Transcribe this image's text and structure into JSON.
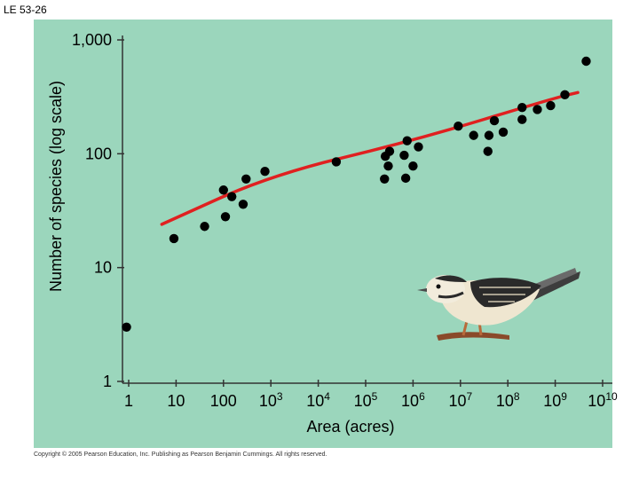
{
  "slide_id": "LE 53-26",
  "copyright": "Copyright © 2005 Pearson Education, Inc. Publishing as Pearson Benjamin Cummings. All rights reserved.",
  "colors": {
    "panel": "#9bd6bc",
    "points": "#000000",
    "trend": "#e02020"
  },
  "illustration": {
    "icon": "bird-illustration-icon"
  },
  "chart_data": {
    "type": "scatter",
    "title": "",
    "xlabel": "Area (acres)",
    "ylabel": "Number of species (log scale)",
    "x_scale": "log",
    "y_scale": "log",
    "xlim": [
      1,
      10000000000
    ],
    "ylim": [
      1,
      1000
    ],
    "x_tick_values": [
      1,
      10,
      100,
      1000,
      10000,
      100000,
      1000000,
      10000000,
      100000000,
      1000000000,
      10000000000
    ],
    "x_ticks": [
      {
        "base": "1",
        "exp": ""
      },
      {
        "base": "10",
        "exp": ""
      },
      {
        "base": "100",
        "exp": ""
      },
      {
        "base": "10",
        "exp": "3"
      },
      {
        "base": "10",
        "exp": "4"
      },
      {
        "base": "10",
        "exp": "5"
      },
      {
        "base": "10",
        "exp": "6"
      },
      {
        "base": "10",
        "exp": "7"
      },
      {
        "base": "10",
        "exp": "8"
      },
      {
        "base": "10",
        "exp": "9"
      },
      {
        "base": "10",
        "exp": "10"
      }
    ],
    "y_tick_values": [
      1,
      10,
      100,
      1000
    ],
    "y_ticks": [
      "1",
      "10",
      "100",
      "1,000"
    ],
    "grid": false,
    "points": [
      {
        "x": 0.9,
        "y": 3
      },
      {
        "x": 9,
        "y": 18
      },
      {
        "x": 40,
        "y": 23
      },
      {
        "x": 100,
        "y": 48
      },
      {
        "x": 110,
        "y": 28
      },
      {
        "x": 150,
        "y": 42
      },
      {
        "x": 260,
        "y": 36
      },
      {
        "x": 300,
        "y": 60
      },
      {
        "x": 750,
        "y": 70
      },
      {
        "x": 24000,
        "y": 85
      },
      {
        "x": 260000,
        "y": 95
      },
      {
        "x": 300000,
        "y": 78
      },
      {
        "x": 320000,
        "y": 105
      },
      {
        "x": 250000,
        "y": 60
      },
      {
        "x": 650000,
        "y": 97
      },
      {
        "x": 750000,
        "y": 130
      },
      {
        "x": 700000,
        "y": 61
      },
      {
        "x": 1000000,
        "y": 78
      },
      {
        "x": 1300000,
        "y": 115
      },
      {
        "x": 9000000,
        "y": 175
      },
      {
        "x": 19000000,
        "y": 145
      },
      {
        "x": 40000000,
        "y": 145
      },
      {
        "x": 38000000,
        "y": 105
      },
      {
        "x": 52000000,
        "y": 195
      },
      {
        "x": 80000000,
        "y": 155
      },
      {
        "x": 200000000,
        "y": 200
      },
      {
        "x": 200000000,
        "y": 255
      },
      {
        "x": 420000000,
        "y": 245
      },
      {
        "x": 800000000,
        "y": 265
      },
      {
        "x": 1600000000,
        "y": 330
      },
      {
        "x": 4500000000,
        "y": 650
      }
    ],
    "trend_line": [
      {
        "x": 5,
        "y": 24
      },
      {
        "x": 1000,
        "y": 65
      },
      {
        "x": 1000000,
        "y": 130
      },
      {
        "x": 1000000000,
        "y": 310
      },
      {
        "x": 3000000000,
        "y": 345
      }
    ]
  }
}
